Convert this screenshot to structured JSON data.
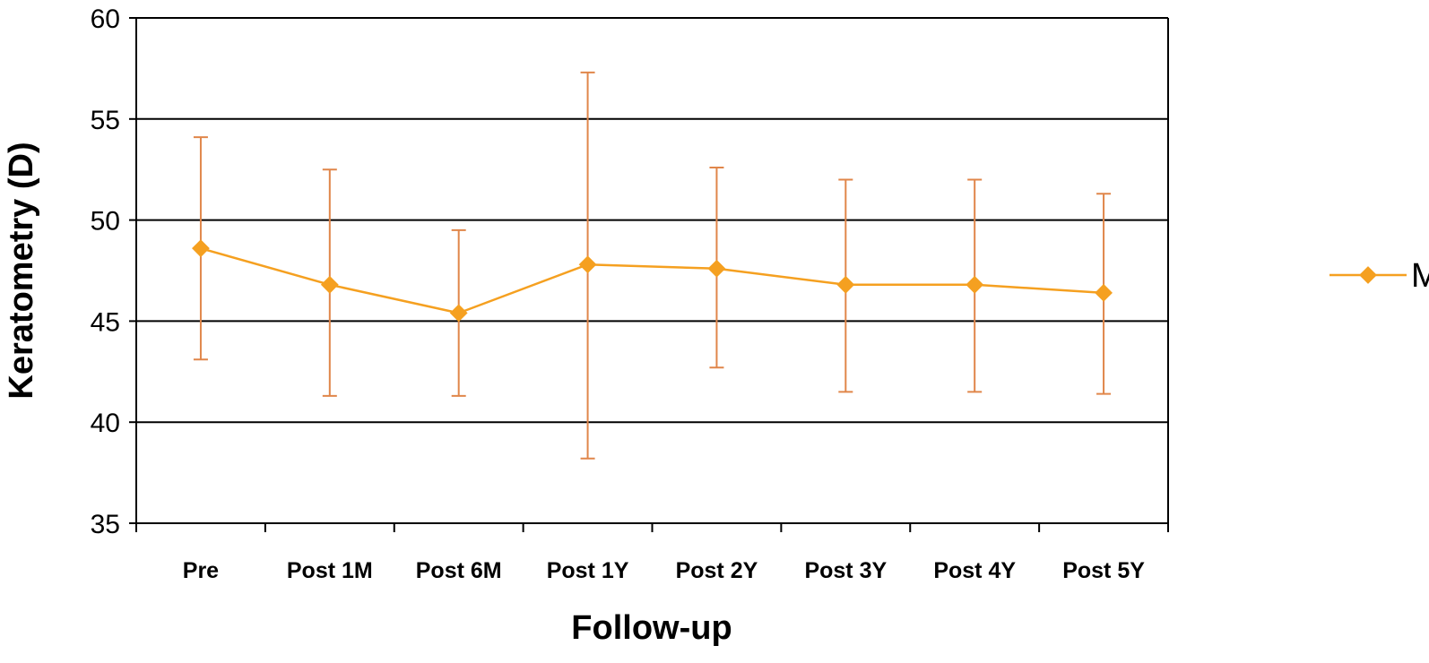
{
  "chart_data": {
    "type": "line",
    "title": "",
    "xlabel": "Follow-up",
    "ylabel": "Keratometry (D)",
    "categories": [
      "Pre",
      "Post 1M",
      "Post 6M",
      "Post 1Y",
      "Post 2Y",
      "Post 3Y",
      "Post 4Y",
      "Post 5Y"
    ],
    "series": [
      {
        "name": "Mean K",
        "values": [
          48.6,
          46.8,
          45.4,
          47.8,
          47.6,
          46.8,
          46.8,
          46.4
        ],
        "error_low": [
          43.1,
          41.3,
          41.3,
          38.2,
          42.7,
          41.5,
          41.5,
          41.4
        ],
        "error_high": [
          54.1,
          52.5,
          49.5,
          57.3,
          52.6,
          52.0,
          52.0,
          51.3
        ],
        "color": "#F5A020",
        "error_bar_color": "#E0864A"
      }
    ],
    "ylim": [
      35,
      60
    ],
    "yticks": [
      35,
      40,
      45,
      50,
      55,
      60
    ],
    "grid": true,
    "legend_position": "right"
  }
}
